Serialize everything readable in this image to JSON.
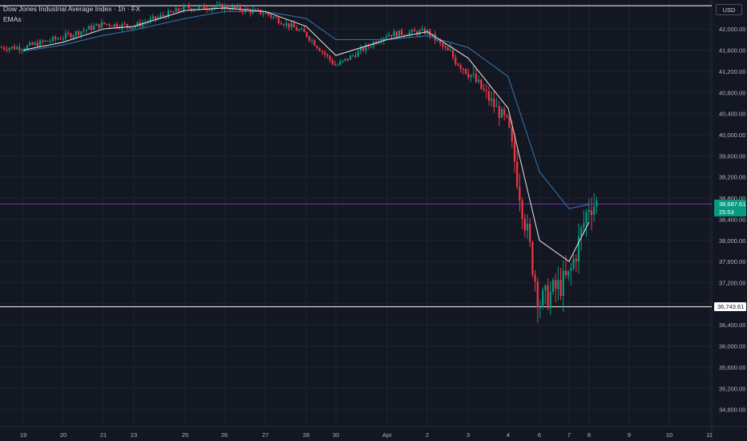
{
  "header": {
    "title": "Dow Jones Industrial Average Index · 1h · FX",
    "indicator": "EMAs",
    "currency": "USD"
  },
  "price_tags": {
    "current_price": "38,687.61",
    "countdown": "25:53",
    "level_price": "36,743.61"
  },
  "colors": {
    "background": "#131722",
    "grid": "#1f2331",
    "up_candle": "#089981",
    "down_candle": "#f23645",
    "ema_fast": "#e8e8e8",
    "ema_slow": "#2f7ab8",
    "price_line": "#8a3fd4",
    "horizontal_line": "#ffffff"
  },
  "chart_data": {
    "type": "candlestick",
    "title": "Dow Jones Industrial Average Index · 1h · FX",
    "x_ticks": [
      "19",
      "20",
      "21",
      "23",
      "25",
      "26",
      "27",
      "28",
      "30",
      "Apr",
      "2",
      "3",
      "4",
      "6",
      "7",
      "8",
      "9",
      "10",
      "11"
    ],
    "y_ticks": [
      34800,
      35200,
      35600,
      36000,
      36400,
      36800,
      37200,
      37600,
      38000,
      38400,
      38800,
      39200,
      39600,
      40000,
      40400,
      40800,
      41200,
      41600,
      42000
    ],
    "y_tick_labels": [
      "34,800.00",
      "35,200.00",
      "35,600.00",
      "36,000.00",
      "36,400.00",
      "36,800.00",
      "37,200.00",
      "37,600.00",
      "38,000.00",
      "38,400.00",
      "38,800.00",
      "39,200.00",
      "39,600.00",
      "40,000.00",
      "40,400.00",
      "40,800.00",
      "41,200.00",
      "41,600.00",
      "42,000.00"
    ],
    "ylim": [
      34580,
      42500
    ],
    "series": [
      {
        "name": "EMA fast",
        "color": "#e8e8e8"
      },
      {
        "name": "EMA slow",
        "color": "#2f7ab8"
      }
    ],
    "close_path": [
      [
        "19",
        41650
      ],
      [
        "20",
        41850
      ],
      [
        "21",
        42100
      ],
      [
        "23",
        42050
      ],
      [
        "25",
        42400
      ],
      [
        "26",
        42420
      ],
      [
        "27",
        42300
      ],
      [
        "28",
        41900
      ],
      [
        "30",
        41300
      ],
      [
        "Apr",
        41900
      ],
      [
        "2",
        41950
      ],
      [
        "3",
        41200
      ],
      [
        "4",
        40200
      ],
      [
        "6",
        36800
      ],
      [
        "7",
        37300
      ],
      [
        "8",
        38690
      ]
    ],
    "ema_fast": [
      [
        "19",
        41600
      ],
      [
        "20",
        41750
      ],
      [
        "21",
        42000
      ],
      [
        "23",
        42050
      ],
      [
        "25",
        42350
      ],
      [
        "26",
        42400
      ],
      [
        "27",
        42330
      ],
      [
        "28",
        42050
      ],
      [
        "30",
        41500
      ],
      [
        "Apr",
        41800
      ],
      [
        "2",
        41950
      ],
      [
        "3",
        41450
      ],
      [
        "4",
        40500
      ],
      [
        "6",
        38000
      ],
      [
        "7",
        37600
      ],
      [
        "8",
        38350
      ]
    ],
    "ema_slow": [
      [
        "19",
        41580
      ],
      [
        "20",
        41700
      ],
      [
        "21",
        41880
      ],
      [
        "23",
        41980
      ],
      [
        "25",
        42200
      ],
      [
        "26",
        42330
      ],
      [
        "27",
        42330
      ],
      [
        "28",
        42200
      ],
      [
        "30",
        41800
      ],
      [
        "Apr",
        41800
      ],
      [
        "2",
        41870
      ],
      [
        "3",
        41650
      ],
      [
        "4",
        41100
      ],
      [
        "6",
        39300
      ],
      [
        "7",
        38600
      ],
      [
        "8",
        38680
      ]
    ],
    "horizontal_levels": [
      42440,
      36743.61
    ],
    "current_price": 38687.61
  }
}
